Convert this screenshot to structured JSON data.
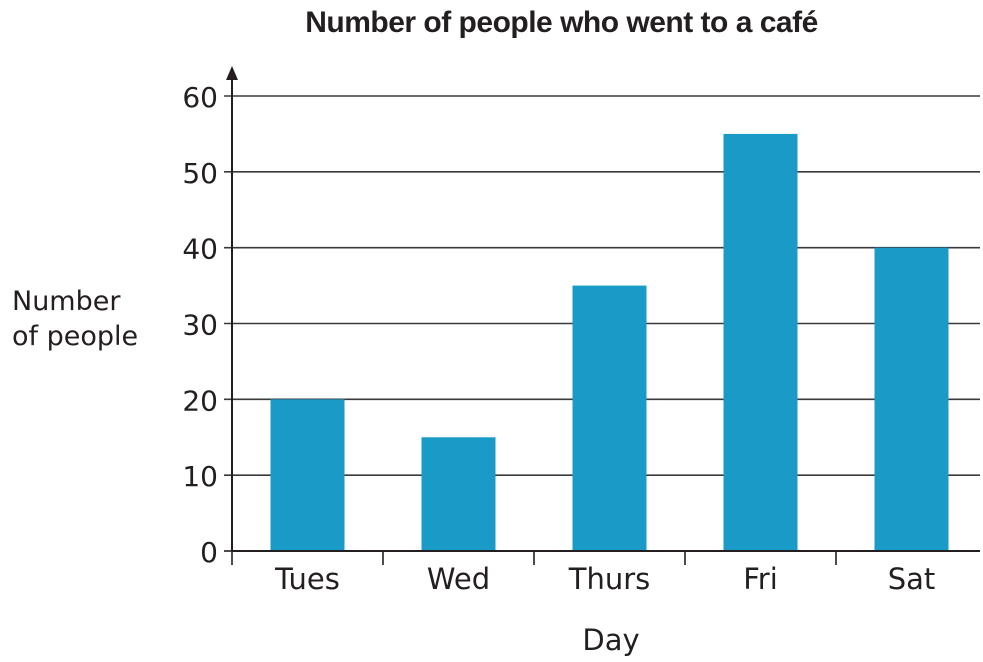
{
  "chart_data": {
    "type": "bar",
    "title": "Number of people who went to a café",
    "xlabel": "Day",
    "ylabel": "Number\nof people",
    "categories": [
      "Tues",
      "Wed",
      "Thurs",
      "Fri",
      "Sat"
    ],
    "values": [
      20,
      15,
      35,
      55,
      40
    ],
    "ylim": [
      0,
      60
    ],
    "yticks": [
      0,
      10,
      20,
      30,
      40,
      50,
      60
    ],
    "grid": true,
    "legend": "none",
    "colors": {
      "bar": "#1a9bc7",
      "axis": "#231f20",
      "grid": "#3a3a3a"
    }
  }
}
